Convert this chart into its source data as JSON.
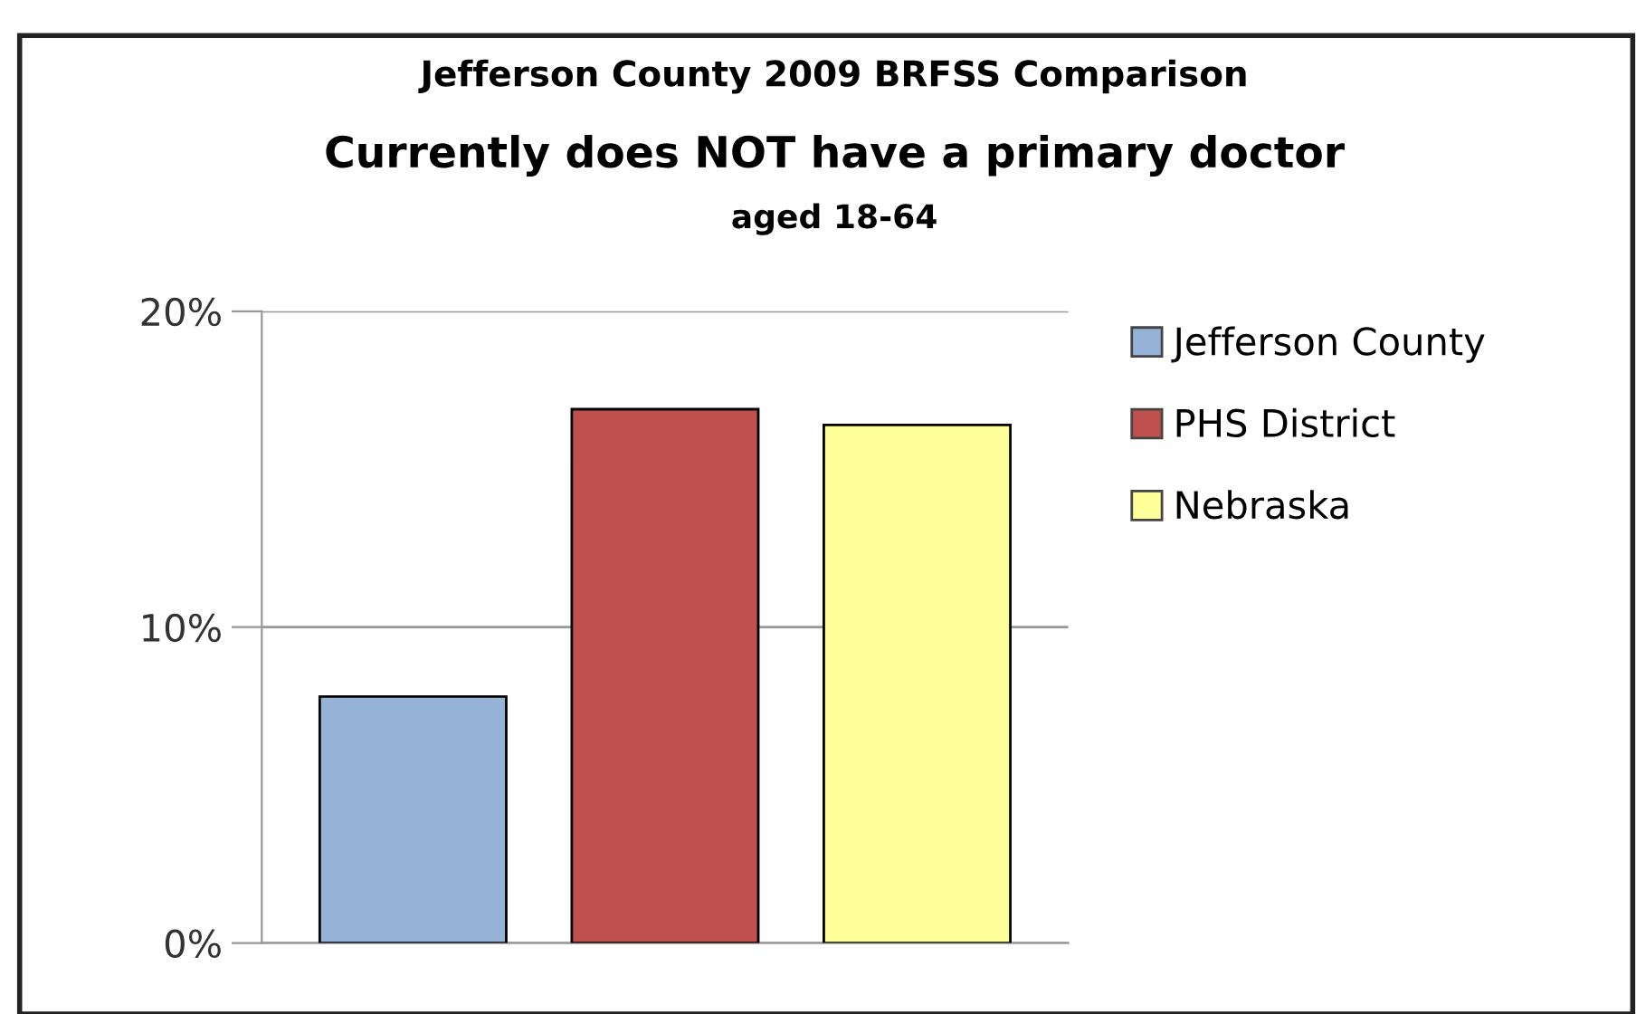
{
  "chart_data": {
    "type": "bar",
    "title": "Jefferson County 2009 BRFSS Comparison",
    "subtitle": "Currently does NOT have a primary doctor",
    "annotations": [
      "aged 18-64"
    ],
    "categories": [
      null,
      null,
      null
    ],
    "series": [
      {
        "name": "Jefferson County",
        "color": "#95b3d7",
        "values": [
          7.8,
          null,
          null
        ]
      },
      {
        "name": "PHS District",
        "color": "#c0504d",
        "values": [
          null,
          16.9,
          null
        ]
      },
      {
        "name": "Nebraska",
        "color": "#ffff99",
        "values": [
          null,
          null,
          16.4
        ]
      }
    ],
    "ylim": [
      0,
      20
    ],
    "yticks": [
      {
        "value": 0,
        "label": "0%"
      },
      {
        "value": 10,
        "label": "10%"
      },
      {
        "value": 20,
        "label": "20%"
      }
    ],
    "grid": "y",
    "legend": "right"
  }
}
